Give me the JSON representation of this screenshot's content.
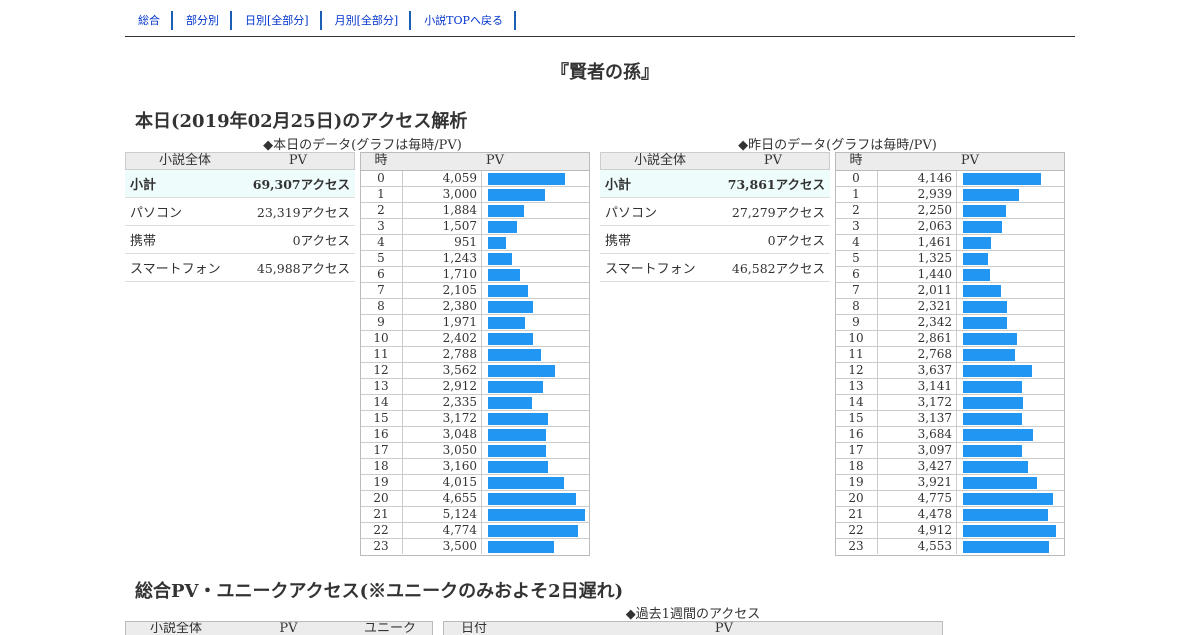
{
  "nav": [
    {
      "label": "総合"
    },
    {
      "label": "部分別"
    },
    {
      "label": "日別[全部分]"
    },
    {
      "label": "月別[全部分]"
    },
    {
      "label": "小説TOPへ戻る"
    }
  ],
  "page_title": "『賢者の孫』",
  "today": {
    "heading": "本日(2019年02月25日)のアクセス解析",
    "caption": "◆本日のデータ(グラフは毎時/PV)",
    "summary": {
      "col_label": "小説全体",
      "col_value": "PV",
      "rows": [
        {
          "label": "小計",
          "value": "69,307アクセス"
        },
        {
          "label": "パソコン",
          "value": "23,319アクセス"
        },
        {
          "label": "携帯",
          "value": "0アクセス"
        },
        {
          "label": "スマートフォン",
          "value": "45,988アクセス"
        }
      ]
    },
    "hourly": {
      "col_hour": "時",
      "col_pv": "PV",
      "hours": [
        "0",
        "1",
        "2",
        "3",
        "4",
        "5",
        "6",
        "7",
        "8",
        "9",
        "10",
        "11",
        "12",
        "13",
        "14",
        "15",
        "16",
        "17",
        "18",
        "19",
        "20",
        "21",
        "22",
        "23"
      ],
      "pv": [
        "4,059",
        "3,000",
        "1,884",
        "1,507",
        "951",
        "1,243",
        "1,710",
        "2,105",
        "2,380",
        "1,971",
        "2,402",
        "2,788",
        "3,562",
        "2,912",
        "2,335",
        "3,172",
        "3,048",
        "3,050",
        "3,160",
        "4,015",
        "4,655",
        "5,124",
        "4,774",
        "3,500"
      ],
      "values": [
        4059,
        3000,
        1884,
        1507,
        951,
        1243,
        1710,
        2105,
        2380,
        1971,
        2402,
        2788,
        3562,
        2912,
        2335,
        3172,
        3048,
        3050,
        3160,
        4015,
        4655,
        5124,
        4774,
        3500
      ]
    }
  },
  "yesterday": {
    "caption": "◆昨日のデータ(グラフは毎時/PV)",
    "summary": {
      "col_label": "小説全体",
      "col_value": "PV",
      "rows": [
        {
          "label": "小計",
          "value": "73,861アクセス"
        },
        {
          "label": "パソコン",
          "value": "27,279アクセス"
        },
        {
          "label": "携帯",
          "value": "0アクセス"
        },
        {
          "label": "スマートフォン",
          "value": "46,582アクセス"
        }
      ]
    },
    "hourly": {
      "col_hour": "時",
      "col_pv": "PV",
      "hours": [
        "0",
        "1",
        "2",
        "3",
        "4",
        "5",
        "6",
        "7",
        "8",
        "9",
        "10",
        "11",
        "12",
        "13",
        "14",
        "15",
        "16",
        "17",
        "18",
        "19",
        "20",
        "21",
        "22",
        "23"
      ],
      "pv": [
        "4,146",
        "2,939",
        "2,250",
        "2,063",
        "1,461",
        "1,325",
        "1,440",
        "2,011",
        "2,321",
        "2,342",
        "2,861",
        "2,768",
        "3,637",
        "3,141",
        "3,172",
        "3,137",
        "3,684",
        "3,097",
        "3,427",
        "3,921",
        "4,775",
        "4,478",
        "4,912",
        "4,553"
      ],
      "values": [
        4146,
        2939,
        2250,
        2063,
        1461,
        1325,
        1440,
        2011,
        2321,
        2342,
        2861,
        2768,
        3637,
        3141,
        3172,
        3137,
        3684,
        3097,
        3427,
        3921,
        4775,
        4478,
        4912,
        4553
      ]
    }
  },
  "totals": {
    "heading": "総合PV・ユニークアクセス(※ユニークのみおよそ2日遅れ)",
    "week_caption": "◆過去1週間のアクセス",
    "left_cols": [
      "小説全体",
      "PV",
      "ユニーク"
    ],
    "right_cols": [
      "日付",
      "PV"
    ]
  },
  "colors": {
    "bar": "#2196f3",
    "link": "#0033cc",
    "nav_divider": "#1a5fb4"
  }
}
